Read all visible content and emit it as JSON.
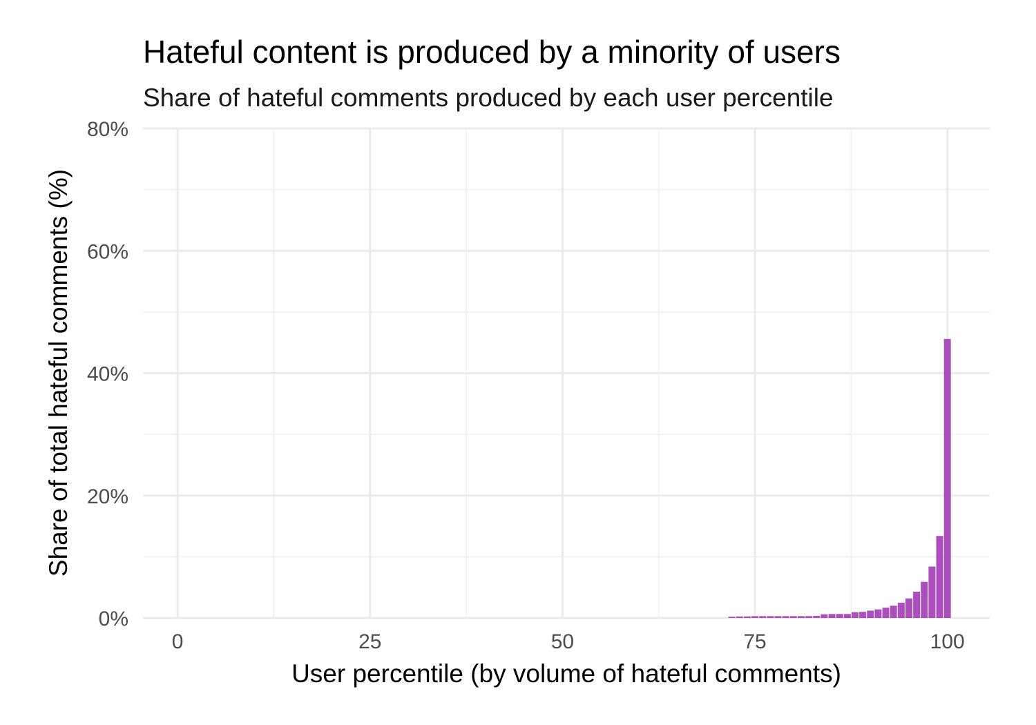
{
  "chart_data": {
    "type": "bar",
    "title": "Hateful content is produced by a minority of users",
    "subtitle": "Share of hateful comments produced by each user percentile",
    "xlabel": "User percentile (by volume of hateful comments)",
    "ylabel": "Share of total hateful comments (%)",
    "xlim": [
      -4.5,
      105.5
    ],
    "ylim": [
      0,
      80
    ],
    "x_ticks": [
      0,
      25,
      50,
      75,
      100
    ],
    "x_tick_labels": [
      "0",
      "25",
      "50",
      "75",
      "100"
    ],
    "y_ticks": [
      0,
      20,
      40,
      60,
      80
    ],
    "y_tick_labels": [
      "0%",
      "20%",
      "40%",
      "60%",
      "80%"
    ],
    "grid": true,
    "legend": "none",
    "bar_color": "#ab4fbd",
    "x": [
      72,
      73,
      74,
      75,
      76,
      77,
      78,
      79,
      80,
      81,
      82,
      83,
      84,
      85,
      86,
      87,
      88,
      89,
      90,
      91,
      92,
      93,
      94,
      95,
      96,
      97,
      98,
      99,
      100
    ],
    "values": [
      0.2,
      0.25,
      0.25,
      0.3,
      0.3,
      0.3,
      0.3,
      0.3,
      0.3,
      0.3,
      0.3,
      0.35,
      0.6,
      0.65,
      0.65,
      0.65,
      0.95,
      1.0,
      1.2,
      1.4,
      1.7,
      2.0,
      2.5,
      3.2,
      4.3,
      5.9,
      8.4,
      13.4,
      45.6
    ]
  }
}
